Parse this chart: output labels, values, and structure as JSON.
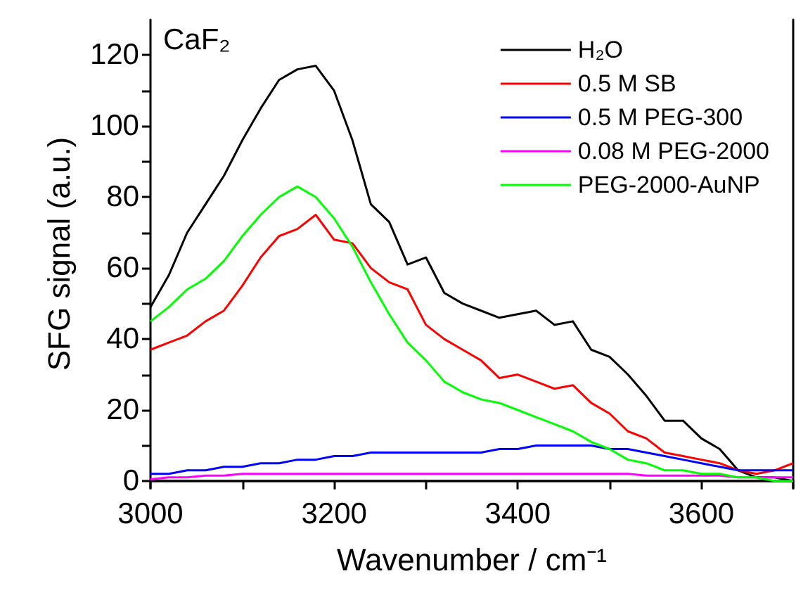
{
  "chart_data": {
    "type": "line",
    "xlabel": "Wavenumber / cm⁻¹",
    "ylabel": "SFG signal (a.u.)",
    "annotations": [
      "CaF₂"
    ],
    "x": [
      3000,
      3020,
      3040,
      3060,
      3080,
      3100,
      3120,
      3140,
      3160,
      3180,
      3200,
      3220,
      3240,
      3260,
      3280,
      3300,
      3320,
      3340,
      3360,
      3380,
      3400,
      3420,
      3440,
      3460,
      3480,
      3500,
      3520,
      3540,
      3560,
      3580,
      3600,
      3620,
      3640,
      3660,
      3680,
      3700
    ],
    "series": [
      {
        "name": "H₂O",
        "color": "#000000",
        "values": [
          49,
          58,
          70,
          78,
          86,
          96,
          105,
          113,
          116,
          117,
          110,
          96,
          78,
          73,
          61,
          63,
          53,
          50,
          48,
          46,
          47,
          48,
          44,
          45,
          37,
          35,
          30,
          24,
          17,
          17,
          12,
          9,
          3,
          1,
          1,
          0
        ]
      },
      {
        "name": "0.5 M SB",
        "color": "#ff0000",
        "values": [
          37,
          39,
          41,
          45,
          48,
          55,
          63,
          69,
          71,
          75,
          68,
          67,
          60,
          56,
          54,
          44,
          40,
          37,
          34,
          29,
          30,
          28,
          26,
          27,
          22,
          19,
          14,
          12,
          8,
          7,
          6,
          5,
          3,
          2,
          3,
          5
        ]
      },
      {
        "name": "0.5 M PEG-300",
        "color": "#0000ff",
        "values": [
          2,
          2,
          3,
          3,
          4,
          4,
          5,
          5,
          6,
          6,
          7,
          7,
          8,
          8,
          8,
          8,
          8,
          8,
          8,
          9,
          9,
          10,
          10,
          10,
          10,
          9,
          9,
          8,
          7,
          6,
          5,
          4,
          3,
          3,
          3,
          3
        ]
      },
      {
        "name": "0.08 M PEG-2000",
        "color": "#ff00ff",
        "values": [
          0.5,
          1,
          1,
          1.5,
          1.5,
          2,
          2,
          2,
          2,
          2,
          2,
          2,
          2,
          2,
          2,
          2,
          2,
          2,
          2,
          2,
          2,
          2,
          2,
          2,
          2,
          2,
          2,
          1.5,
          1.5,
          1.5,
          1.5,
          1.5,
          1,
          1,
          1,
          1
        ]
      },
      {
        "name": "PEG-2000-AuNP",
        "color": "#00ff00",
        "values": [
          45,
          49,
          54,
          57,
          62,
          69,
          75,
          80,
          83,
          80,
          74,
          66,
          56,
          47,
          39,
          34,
          28,
          25,
          23,
          22,
          20,
          18,
          16,
          14,
          11,
          9,
          6,
          5,
          3,
          3,
          2,
          2,
          1,
          1,
          0,
          0
        ]
      }
    ],
    "xlim": [
      3000,
      3700
    ],
    "ylim": [
      -2,
      130
    ],
    "xticks": [
      3000,
      {
        "value": 3100,
        "label": null
      },
      3200,
      {
        "value": 3300,
        "label": null
      },
      3400,
      {
        "value": 3500,
        "label": null
      },
      3600,
      {
        "value": 3700,
        "label": null
      }
    ],
    "yticks": [
      0,
      {
        "value": 10,
        "label": null
      },
      20,
      {
        "value": 30,
        "label": null
      },
      40,
      {
        "value": 50,
        "label": null
      },
      60,
      {
        "value": 70,
        "label": null
      },
      80,
      {
        "value": 90,
        "label": null
      },
      100,
      {
        "value": 110,
        "label": null
      },
      120
    ],
    "grid": false,
    "legend": "top right",
    "marker": "none",
    "line_style": "solid"
  }
}
